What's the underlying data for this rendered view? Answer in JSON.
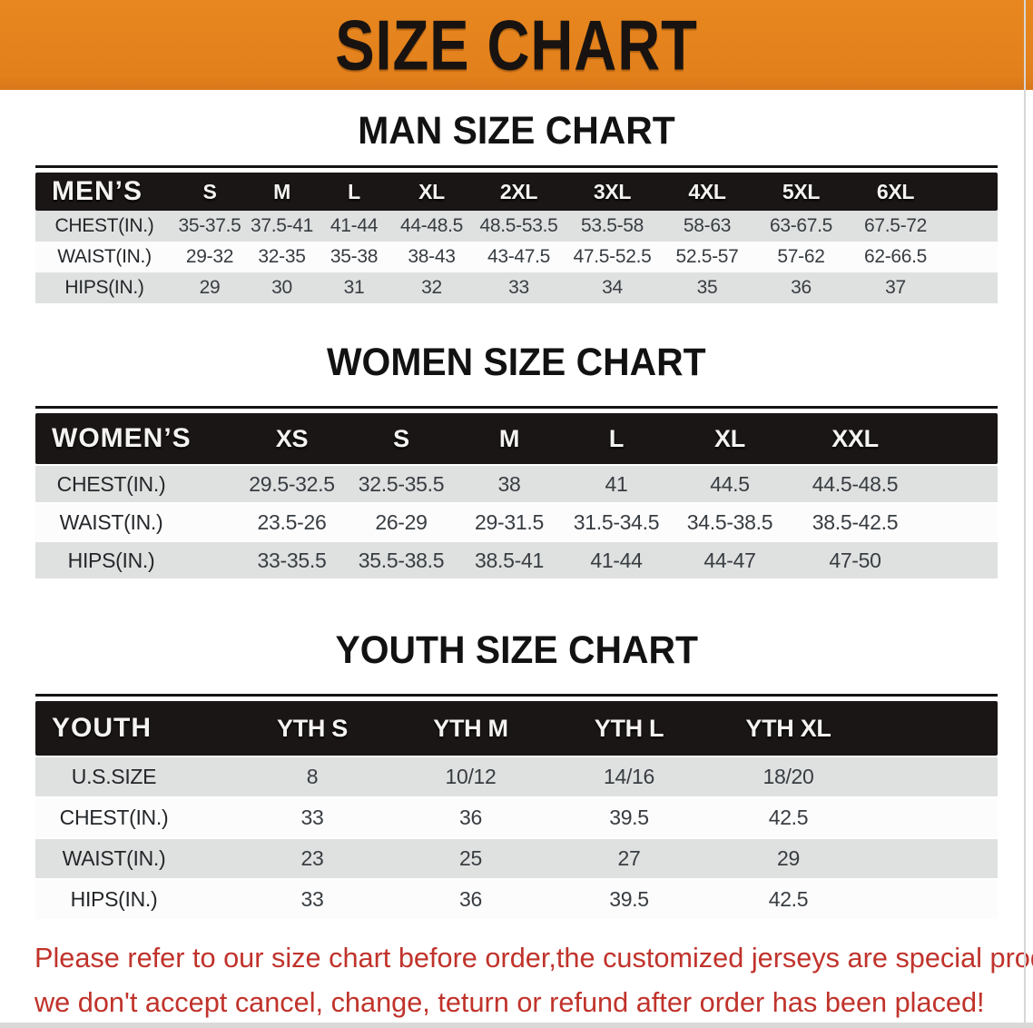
{
  "banner": {
    "title": "SIZE CHART",
    "bg_color": "#E2801C",
    "text_color": "#181310"
  },
  "sections": [
    {
      "id": "men",
      "heading": "MAN SIZE CHART",
      "header_label": "MEN’S",
      "columns": [
        "S",
        "M",
        "L",
        "XL",
        "2XL",
        "3XL",
        "4XL",
        "5XL",
        "6XL"
      ],
      "rows": [
        {
          "label": "CHEST(IN.)",
          "values": [
            "35-37.5",
            "37.5-41",
            "41-44",
            "44-48.5",
            "48.5-53.5",
            "53.5-58",
            "58-63",
            "63-67.5",
            "67.5-72"
          ]
        },
        {
          "label": "WAIST(IN.)",
          "values": [
            "29-32",
            "32-35",
            "35-38",
            "38-43",
            "43-47.5",
            "47.5-52.5",
            "52.5-57",
            "57-62",
            "62-66.5"
          ]
        },
        {
          "label": "HIPS(IN.)",
          "values": [
            "29",
            "30",
            "31",
            "32",
            "33",
            "34",
            "35",
            "36",
            "37"
          ]
        }
      ]
    },
    {
      "id": "women",
      "heading": "WOMEN SIZE CHART",
      "header_label": "WOMEN’S",
      "columns": [
        "XS",
        "S",
        "M",
        "L",
        "XL",
        "XXL"
      ],
      "rows": [
        {
          "label": "CHEST(IN.)",
          "values": [
            "29.5-32.5",
            "32.5-35.5",
            "38",
            "41",
            "44.5",
            "44.5-48.5"
          ]
        },
        {
          "label": "WAIST(IN.)",
          "values": [
            "23.5-26",
            "26-29",
            "29-31.5",
            "31.5-34.5",
            "34.5-38.5",
            "38.5-42.5"
          ]
        },
        {
          "label": "HIPS(IN.)",
          "values": [
            "33-35.5",
            "35.5-38.5",
            "38.5-41",
            "41-44",
            "44-47",
            "47-50"
          ]
        }
      ]
    },
    {
      "id": "youth",
      "heading": "YOUTH SIZE CHART",
      "header_label": "YOUTH",
      "columns": [
        "YTH S",
        "YTH M",
        "YTH L",
        "YTH XL"
      ],
      "rows": [
        {
          "label": "U.S.SIZE",
          "values": [
            "8",
            "10/12",
            "14/16",
            "18/20"
          ]
        },
        {
          "label": "CHEST(IN.)",
          "values": [
            "33",
            "36",
            "39.5",
            "42.5"
          ]
        },
        {
          "label": "WAIST(IN.)",
          "values": [
            "23",
            "25",
            "27",
            "29"
          ]
        },
        {
          "label": "HIPS(IN.)",
          "values": [
            "33",
            "36",
            "39.5",
            "42.5"
          ]
        }
      ]
    }
  ],
  "disclaimer": {
    "line1": "Please refer to our size chart before order,the customized jerseys are special products,",
    "line2": "we don't accept cancel, change, teturn or refund after order has been placed!",
    "color": "#C0332B"
  }
}
